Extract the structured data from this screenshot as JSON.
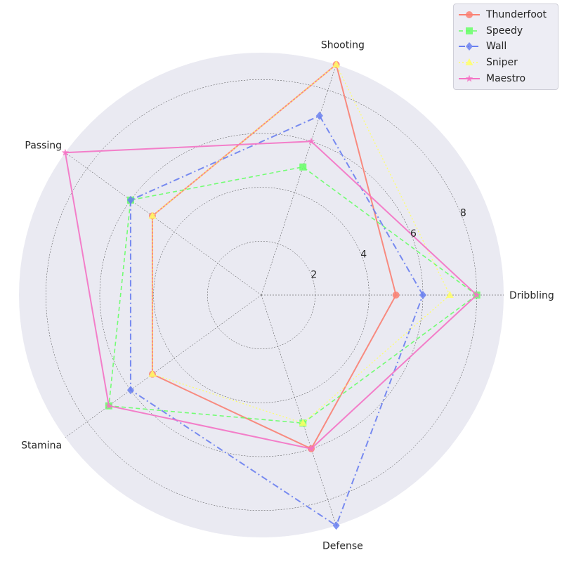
{
  "chart_data": {
    "type": "radar",
    "axes": [
      "Dribbling",
      "Shooting",
      "Passing",
      "Stamina",
      "Defense"
    ],
    "rlim": [
      0,
      9
    ],
    "rticks": [
      2,
      4,
      6,
      8
    ],
    "grid": true,
    "legend_position": "top-right",
    "background": "#eaeaf2",
    "series": [
      {
        "name": "Thunderfoot",
        "values": [
          5,
          9,
          5,
          5,
          6
        ],
        "color": "#fa8072",
        "linestyle": "solid",
        "marker": "circle",
        "linewidth": 2
      },
      {
        "name": "Speedy",
        "values": [
          8,
          5,
          6,
          7,
          5
        ],
        "color": "#66ff66",
        "linestyle": "dashed",
        "marker": "square",
        "linewidth": 1.6
      },
      {
        "name": "Wall",
        "values": [
          6,
          7,
          6,
          6,
          9
        ],
        "color": "#6a80f0",
        "linestyle": "dashdot",
        "marker": "diamond",
        "linewidth": 2
      },
      {
        "name": "Sniper",
        "values": [
          7,
          9,
          5,
          5,
          5
        ],
        "color": "#ffff66",
        "linestyle": "dotted",
        "marker": "triangle",
        "linewidth": 1.4
      },
      {
        "name": "Maestro",
        "values": [
          8,
          6,
          9,
          7,
          6
        ],
        "color": "#f472c4",
        "linestyle": "solid",
        "marker": "star",
        "linewidth": 2
      }
    ]
  }
}
